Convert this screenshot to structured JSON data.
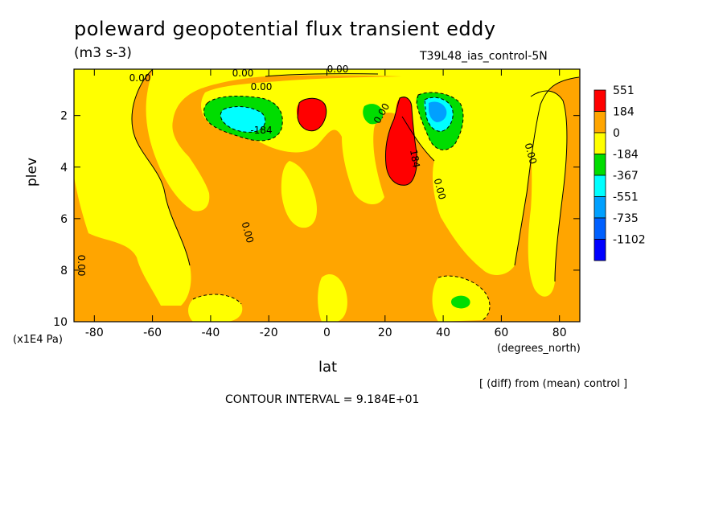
{
  "header": {
    "title": "poleward geopotential flux transient eddy",
    "units": "(m3 s-3)",
    "run": "T39L48_ias_control-5N"
  },
  "footer": {
    "diff_note": "[ (diff) from (mean) control ]",
    "contour_interval": "CONTOUR INTERVAL = 9.184E+01"
  },
  "chart_data": {
    "type": "heatmap",
    "title": "poleward geopotential flux transient eddy",
    "subtitle": "(m3 s-3)",
    "xlabel": "lat",
    "xunits": "(degrees_north)",
    "ylabel": "plev",
    "yunits": "(x1E4 Pa)",
    "xlim": [
      -87,
      87
    ],
    "ylim": [
      10,
      0.2
    ],
    "xticks": [
      -80,
      -60,
      -40,
      -20,
      0,
      20,
      40,
      60,
      80
    ],
    "yticks": [
      2,
      4,
      6,
      8,
      10
    ],
    "legend_position": "right",
    "colorbar": {
      "levels": [
        "551",
        "184",
        "0",
        "-184",
        "-367",
        "-551",
        "-735",
        "-1102"
      ],
      "colors": [
        "#ff0000",
        "#ffa500",
        "#ffff00",
        "#00dd00",
        "#00ffff",
        "#00a0ff",
        "#0060ff",
        "#0000ff"
      ]
    },
    "fill_colors": {
      "positive": "#ffa500",
      "near_zero": "#ffff00",
      "strong_positive": "#ff0000",
      "weak_negative": "#00dd00",
      "moderate_negative": "#00ffff",
      "strong_negative": "#00a0ff"
    },
    "contour_labels": [
      "0.00",
      "0.00",
      "0.00",
      "0.00",
      "0.00",
      "0.00",
      "0.00",
      "0.00",
      "0.00",
      "-184",
      "184"
    ],
    "features": [
      {
        "name": "strong positive core",
        "lat": 26,
        "plev": 3.0,
        "value": 551
      },
      {
        "name": "positive core",
        "lat": -5,
        "plev": 1.8,
        "value": 551
      },
      {
        "name": "negative core",
        "lat": -28,
        "plev": 2.1,
        "value": -551
      },
      {
        "name": "negative core",
        "lat": 40,
        "plev": 2.0,
        "value": -735
      },
      {
        "name": "weak negative",
        "lat": 17,
        "plev": 1.8,
        "value": -184
      },
      {
        "name": "weak negative",
        "lat": 47,
        "plev": 9.1,
        "value": -184
      }
    ]
  }
}
